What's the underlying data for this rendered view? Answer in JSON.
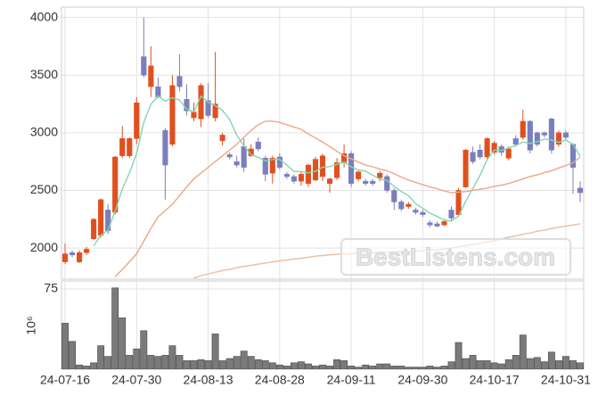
{
  "chart_data": {
    "type": "candlestick",
    "watermark": "BestListens.com",
    "categories": [
      "24-07-16",
      null,
      null,
      null,
      null,
      null,
      null,
      null,
      null,
      null,
      "24-07-30",
      null,
      null,
      null,
      null,
      null,
      null,
      null,
      null,
      null,
      "24-08-13",
      null,
      null,
      null,
      null,
      null,
      null,
      null,
      null,
      null,
      "24-08-28",
      null,
      null,
      null,
      null,
      null,
      null,
      null,
      null,
      null,
      "24-09-11",
      null,
      null,
      null,
      null,
      null,
      null,
      null,
      null,
      null,
      "24-09-30",
      null,
      null,
      null,
      null,
      null,
      null,
      null,
      null,
      null,
      "24-10-17",
      null,
      null,
      null,
      null,
      null,
      null,
      null,
      null,
      null,
      "24-10-31",
      null,
      null
    ],
    "open": [
      1880,
      1960,
      1880,
      1960,
      2080,
      2110,
      2330,
      2310,
      2800,
      2800,
      2950,
      3660,
      3400,
      3400,
      3020,
      2900,
      3490,
      3290,
      3130,
      3120,
      3280,
      3130,
      2930,
      2810,
      2750,
      2880,
      2800,
      2920,
      2780,
      2650,
      2790,
      2640,
      2620,
      2580,
      2560,
      2590,
      2620,
      2560,
      2610,
      2740,
      2820,
      2600,
      2580,
      2580,
      2610,
      2620,
      2500,
      2400,
      2360,
      2330,
      2310,
      2220,
      2210,
      2200,
      2330,
      2290,
      2530,
      2830,
      2850,
      2790,
      2830,
      2880,
      2780,
      2950,
      2960,
      3100,
      3000,
      3000,
      3120,
      2900,
      3000,
      2900,
      2520
    ],
    "high": [
      2040,
      1980,
      1980,
      2010,
      2260,
      2430,
      2380,
      2800,
      3060,
      2960,
      3310,
      4000,
      3750,
      3480,
      3040,
      3500,
      3680,
      3420,
      3260,
      3430,
      3430,
      3700,
      3000,
      2830,
      2800,
      2950,
      2900,
      2960,
      2800,
      2800,
      2820,
      2660,
      2640,
      2660,
      2730,
      2790,
      2820,
      2610,
      2780,
      2900,
      2840,
      2670,
      2600,
      2600,
      2670,
      2640,
      2520,
      2420,
      2400,
      2350,
      2330,
      2240,
      2230,
      2250,
      2360,
      2520,
      2860,
      2880,
      2900,
      2960,
      2930,
      2900,
      2880,
      2980,
      3200,
      3110,
      3010,
      3010,
      3130,
      3020,
      3020,
      2910,
      2580
    ],
    "low": [
      1860,
      1920,
      1870,
      1940,
      2070,
      2090,
      2120,
      2290,
      2780,
      2780,
      2900,
      3480,
      3310,
      3300,
      2420,
      2880,
      3360,
      3150,
      3100,
      3050,
      3130,
      3100,
      2890,
      2770,
      2700,
      2660,
      2790,
      2840,
      2580,
      2560,
      2680,
      2600,
      2560,
      2540,
      2530,
      2580,
      2580,
      2480,
      2590,
      2700,
      2530,
      2580,
      2540,
      2540,
      2580,
      2480,
      2330,
      2320,
      2340,
      2290,
      2270,
      2180,
      2180,
      2190,
      2240,
      2270,
      2520,
      2730,
      2770,
      2770,
      2810,
      2800,
      2760,
      2880,
      2940,
      2820,
      2880,
      2960,
      2820,
      2880,
      2940,
      2470,
      2400
    ],
    "close": [
      1950,
      1940,
      1960,
      1990,
      2250,
      2420,
      2150,
      2790,
      2950,
      2950,
      3260,
      3500,
      3580,
      3310,
      2720,
      3410,
      3400,
      3190,
      3180,
      3410,
      3150,
      3250,
      2980,
      2790,
      2720,
      2700,
      2860,
      2860,
      2640,
      2780,
      2700,
      2620,
      2580,
      2640,
      2720,
      2770,
      2800,
      2600,
      2740,
      2820,
      2560,
      2660,
      2560,
      2560,
      2650,
      2500,
      2400,
      2340,
      2380,
      2310,
      2290,
      2200,
      2190,
      2230,
      2260,
      2500,
      2850,
      2750,
      2790,
      2950,
      2910,
      2830,
      2860,
      2900,
      3100,
      2850,
      2900,
      2980,
      2850,
      3000,
      2960,
      2700,
      2480
    ],
    "up_color": "#e0501e",
    "down_color": "#7a7ebd",
    "lines": [
      {
        "color": "#86d4ad",
        "values": [
          null,
          null,
          null,
          null,
          2018,
          2112,
          2154,
          2320,
          2512,
          2652,
          2820,
          3090,
          3248,
          3320,
          3274,
          3304,
          3284,
          3206,
          3180,
          3318,
          3266,
          3236,
          3194,
          3116,
          2978,
          2888,
          2810,
          2786,
          2756,
          2768,
          2768,
          2720,
          2664,
          2664,
          2652,
          2666,
          2702,
          2706,
          2726,
          2746,
          2704,
          2676,
          2668,
          2632,
          2598,
          2586,
          2534,
          2490,
          2454,
          2386,
          2344,
          2304,
          2274,
          2244,
          2234,
          2276,
          2406,
          2518,
          2630,
          2768,
          2850,
          2846,
          2868,
          2890,
          2920,
          2908,
          2922,
          2946,
          2936,
          2916,
          2938,
          2898,
          2798
        ]
      },
      {
        "color": "#eba68a",
        "values": [
          null,
          null,
          null,
          null,
          null,
          null,
          null,
          1750,
          1815,
          1880,
          1950,
          2060,
          2170,
          2270,
          2325,
          2380,
          2455,
          2530,
          2600,
          2650,
          2700,
          2750,
          2800,
          2850,
          2900,
          2960,
          3020,
          3070,
          3100,
          3100,
          3090,
          3070,
          3050,
          3030,
          2990,
          2955,
          2920,
          2880,
          2840,
          2800,
          2775,
          2745,
          2720,
          2705,
          2685,
          2670,
          2645,
          2615,
          2590,
          2570,
          2550,
          2530,
          2515,
          2495,
          2480,
          2485,
          2490,
          2500,
          2510,
          2520,
          2535,
          2545,
          2560,
          2580,
          2600,
          2620,
          2635,
          2655,
          2670,
          2695,
          2715,
          2740,
          2790
        ]
      },
      {
        "color": "#e9bd9f",
        "values": [
          null,
          null,
          null,
          null,
          null,
          null,
          null,
          null,
          null,
          null,
          null,
          null,
          null,
          null,
          null,
          null,
          null,
          null,
          1740,
          1760,
          1775,
          1790,
          1805,
          1815,
          1830,
          1840,
          1850,
          1860,
          1870,
          1880,
          1890,
          1895,
          1905,
          1910,
          1920,
          1930,
          1935,
          1940,
          1945,
          1950,
          1950,
          1955,
          1955,
          1960,
          1960,
          1965,
          1965,
          1968,
          1970,
          1972,
          1975,
          1980,
          1985,
          1990,
          2000,
          2010,
          2020,
          2030,
          2040,
          2055,
          2065,
          2080,
          2095,
          2105,
          2120,
          2130,
          2145,
          2155,
          2170,
          2180,
          2190,
          2200,
          2210
        ]
      }
    ],
    "ylim": [
      1730,
      4090
    ],
    "yticks": [
      2000,
      2500,
      3000,
      3500,
      4000
    ],
    "grid": true,
    "volume": {
      "ylabel": "10⁶",
      "color": "#7a7a7a",
      "values": [
        43,
        26,
        4,
        3,
        6,
        22,
        12,
        76,
        48,
        13,
        19,
        36,
        13,
        12,
        13,
        22,
        13,
        8,
        8,
        9,
        8,
        33,
        8,
        10,
        12,
        17,
        12,
        9,
        8,
        6,
        4,
        3,
        6,
        7,
        5,
        3,
        4,
        3,
        9,
        8,
        3,
        2,
        4,
        3,
        5,
        5,
        3,
        3,
        2,
        2,
        2,
        3,
        2,
        3,
        7,
        25,
        10,
        13,
        8,
        8,
        6,
        5,
        9,
        13,
        32,
        10,
        11,
        7,
        16,
        8,
        12,
        8,
        6
      ],
      "ylim": [
        0,
        82.5
      ],
      "yticks": [
        75
      ]
    }
  }
}
